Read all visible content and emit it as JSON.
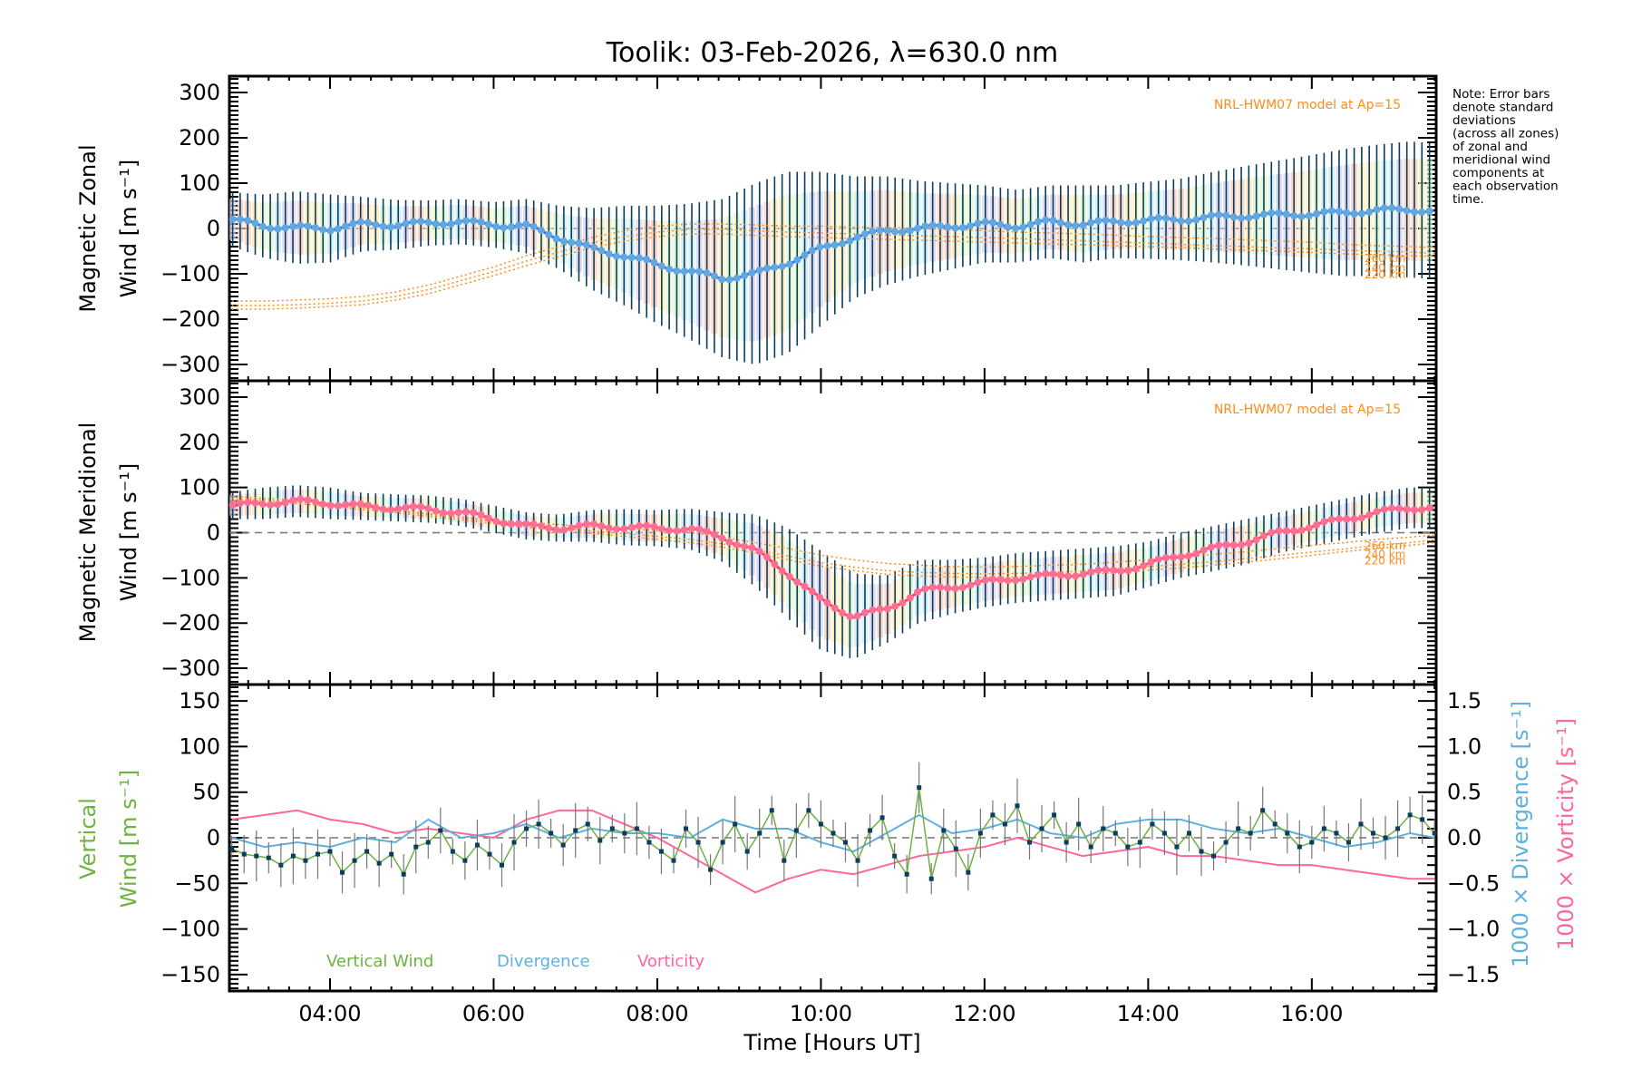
{
  "chart_data": [
    {
      "type": "line",
      "panel": "zonal",
      "title": "Toolik: 03-Feb-2026, λ=630.0 nm",
      "ylabel_line1": "Magnetic Zonal",
      "ylabel_line2": "Wind [m s⁻¹]",
      "ylim": [
        -336,
        336
      ],
      "yticks": [
        300,
        200,
        100,
        0,
        -100,
        -200,
        -300
      ],
      "model_label": "NRL-HWM07 model at Ap=15",
      "model_altitudes": [
        "260 km",
        "240 km",
        "220 km"
      ],
      "x": [
        2.8,
        3.2,
        3.6,
        4.0,
        4.4,
        4.8,
        5.2,
        5.6,
        6.0,
        6.4,
        6.8,
        7.2,
        7.6,
        8.0,
        8.4,
        8.8,
        9.2,
        9.6,
        10.0,
        10.4,
        10.8,
        11.2,
        11.6,
        12.0,
        12.4,
        12.8,
        13.2,
        13.6,
        14.0,
        14.4,
        14.8,
        15.2,
        15.6,
        16.0,
        16.4,
        16.8,
        17.2,
        17.5
      ],
      "series": [
        {
          "name": "Mean zonal wind",
          "color": "#3b5bff",
          "values": [
            20,
            5,
            2,
            0,
            10,
            8,
            12,
            15,
            8,
            5,
            -20,
            -45,
            -60,
            -80,
            -95,
            -110,
            -100,
            -75,
            -45,
            -20,
            -5,
            0,
            5,
            10,
            5,
            15,
            10,
            15,
            18,
            20,
            25,
            28,
            30,
            32,
            35,
            40,
            42,
            38
          ]
        },
        {
          "name": "Error bar half-width",
          "color": "#0b3d5c",
          "values": [
            60,
            70,
            80,
            75,
            60,
            55,
            50,
            50,
            50,
            60,
            70,
            90,
            110,
            130,
            150,
            175,
            200,
            200,
            170,
            135,
            120,
            105,
            95,
            85,
            80,
            80,
            85,
            80,
            85,
            90,
            100,
            110,
            120,
            130,
            140,
            145,
            150,
            150
          ]
        },
        {
          "name": "HWM07 260 km",
          "color": "#ff8c1a",
          "values": [
            -160,
            -160,
            -158,
            -155,
            -150,
            -140,
            -125,
            -105,
            -85,
            -60,
            -40,
            -20,
            -5,
            5,
            10,
            10,
            8,
            5,
            5,
            3,
            2,
            0,
            -2,
            -5,
            -8,
            -10,
            -12,
            -15,
            -18,
            -20,
            -22,
            -25,
            -28,
            -30,
            -35,
            -38,
            -40,
            -42
          ]
        },
        {
          "name": "HWM07 240 km",
          "color": "#ff8c1a",
          "values": [
            -170,
            -170,
            -168,
            -165,
            -160,
            -150,
            -135,
            -115,
            -95,
            -72,
            -52,
            -32,
            -18,
            -8,
            -2,
            -2,
            -5,
            -8,
            -10,
            -12,
            -14,
            -16,
            -18,
            -20,
            -22,
            -25,
            -27,
            -30,
            -32,
            -35,
            -38,
            -40,
            -43,
            -45,
            -48,
            -50,
            -52,
            -55
          ]
        },
        {
          "name": "HWM07 220 km",
          "color": "#ff8c1a",
          "values": [
            -178,
            -178,
            -176,
            -172,
            -168,
            -158,
            -144,
            -124,
            -104,
            -82,
            -62,
            -42,
            -28,
            -18,
            -12,
            -12,
            -15,
            -18,
            -20,
            -22,
            -24,
            -26,
            -28,
            -30,
            -32,
            -34,
            -36,
            -38,
            -40,
            -42,
            -45,
            -48,
            -50,
            -53,
            -56,
            -58,
            -60,
            -62
          ]
        }
      ]
    },
    {
      "type": "line",
      "panel": "meridional",
      "ylabel_line1": "Magnetic Meridional",
      "ylabel_line2": "Wind [m s⁻¹]",
      "ylim": [
        -336,
        336
      ],
      "yticks": [
        300,
        200,
        100,
        0,
        -100,
        -200,
        -300
      ],
      "model_label": "NRL-HWM07 model at Ap=15",
      "model_altitudes": [
        "260 km",
        "240 km",
        "220 km"
      ],
      "x": [
        2.8,
        3.2,
        3.6,
        4.0,
        4.4,
        4.8,
        5.2,
        5.6,
        6.0,
        6.4,
        6.8,
        7.2,
        7.6,
        8.0,
        8.4,
        8.8,
        9.2,
        9.6,
        10.0,
        10.4,
        10.8,
        11.2,
        11.6,
        12.0,
        12.4,
        12.8,
        13.2,
        13.6,
        14.0,
        14.4,
        14.8,
        15.2,
        15.6,
        16.0,
        16.4,
        16.8,
        17.2,
        17.5
      ],
      "series": [
        {
          "name": "Mean meridional wind",
          "color": "#ff4f7b",
          "values": [
            60,
            65,
            70,
            65,
            58,
            55,
            52,
            45,
            30,
            15,
            10,
            15,
            12,
            10,
            8,
            -10,
            -40,
            -90,
            -150,
            -185,
            -170,
            -130,
            -120,
            -110,
            -100,
            -95,
            -90,
            -85,
            -70,
            -50,
            -35,
            -20,
            0,
            15,
            30,
            45,
            55,
            55
          ]
        },
        {
          "name": "Error bar half-width",
          "color": "#0b3d5c",
          "values": [
            30,
            35,
            35,
            35,
            30,
            30,
            30,
            30,
            30,
            30,
            30,
            35,
            40,
            40,
            45,
            55,
            80,
            100,
            110,
            95,
            75,
            70,
            60,
            55,
            55,
            55,
            55,
            55,
            50,
            50,
            50,
            50,
            45,
            45,
            45,
            45,
            45,
            45
          ]
        },
        {
          "name": "HWM07 260 km",
          "color": "#ff8c1a",
          "values": [
            80,
            76,
            72,
            65,
            58,
            50,
            42,
            35,
            28,
            22,
            18,
            12,
            8,
            5,
            0,
            -10,
            -22,
            -35,
            -50,
            -60,
            -68,
            -72,
            -75,
            -76,
            -75,
            -72,
            -70,
            -65,
            -60,
            -55,
            -48,
            -42,
            -35,
            -28,
            -22,
            -15,
            -10,
            -5
          ]
        },
        {
          "name": "HWM07 240 km",
          "color": "#ff8c1a",
          "values": [
            75,
            72,
            68,
            62,
            55,
            48,
            40,
            32,
            24,
            16,
            10,
            4,
            -2,
            -8,
            -15,
            -25,
            -38,
            -52,
            -66,
            -76,
            -84,
            -88,
            -90,
            -91,
            -90,
            -88,
            -85,
            -80,
            -75,
            -70,
            -64,
            -58,
            -50,
            -43,
            -36,
            -28,
            -22,
            -16
          ]
        },
        {
          "name": "HWM07 220 km",
          "color": "#ff8c1a",
          "values": [
            70,
            68,
            64,
            58,
            51,
            44,
            36,
            28,
            20,
            12,
            5,
            -2,
            -8,
            -15,
            -22,
            -32,
            -45,
            -60,
            -74,
            -84,
            -92,
            -96,
            -98,
            -99,
            -98,
            -96,
            -93,
            -88,
            -83,
            -78,
            -72,
            -65,
            -58,
            -50,
            -42,
            -35,
            -28,
            -22
          ]
        }
      ]
    },
    {
      "type": "line",
      "panel": "vertical",
      "ylabel_line1": "Vertical",
      "ylabel_line2": "Wind [m s⁻¹]",
      "ylim": [
        -168,
        168
      ],
      "yticks": [
        150,
        100,
        50,
        0,
        -50,
        -100,
        -150
      ],
      "y2label_divergence": "1000 × Divergence [s⁻¹]",
      "y2label_vorticity": "1000 × Vorticity [s⁻¹]",
      "y2lim": [
        -1.68,
        1.68
      ],
      "y2ticks": [
        "1.5",
        "1.0",
        "0.5",
        "0.0",
        "−0.5",
        "−1.0",
        "−1.5"
      ],
      "xlabel": "Time [Hours UT]",
      "xticks": [
        "04:00",
        "06:00",
        "08:00",
        "10:00",
        "12:00",
        "14:00",
        "16:00"
      ],
      "xlim_hours": [
        2.77,
        17.52
      ],
      "legend": [
        {
          "label": "Vertical Wind",
          "color": "#6db33f"
        },
        {
          "label": "Divergence",
          "color": "#5fb0dc"
        },
        {
          "label": "Vorticity",
          "color": "#ff6699"
        }
      ],
      "vertical_wind": {
        "x": [
          2.8,
          2.95,
          3.1,
          3.25,
          3.4,
          3.55,
          3.7,
          3.85,
          4.0,
          4.15,
          4.3,
          4.45,
          4.6,
          4.75,
          4.9,
          5.05,
          5.2,
          5.35,
          5.5,
          5.65,
          5.8,
          5.95,
          6.1,
          6.25,
          6.4,
          6.55,
          6.7,
          6.85,
          7.0,
          7.15,
          7.3,
          7.45,
          7.6,
          7.75,
          7.9,
          8.05,
          8.2,
          8.35,
          8.5,
          8.65,
          8.8,
          8.95,
          9.1,
          9.25,
          9.4,
          9.55,
          9.7,
          9.85,
          10.0,
          10.15,
          10.3,
          10.45,
          10.6,
          10.75,
          10.9,
          11.05,
          11.2,
          11.35,
          11.5,
          11.65,
          11.8,
          11.95,
          12.1,
          12.25,
          12.4,
          12.55,
          12.7,
          12.85,
          13.0,
          13.15,
          13.3,
          13.45,
          13.6,
          13.75,
          13.9,
          14.05,
          14.2,
          14.35,
          14.5,
          14.65,
          14.8,
          14.95,
          15.1,
          15.25,
          15.4,
          15.55,
          15.7,
          15.85,
          16.0,
          16.15,
          16.3,
          16.45,
          16.6,
          16.75,
          16.9,
          17.05,
          17.2,
          17.35,
          17.5
        ],
        "values": [
          -12,
          -18,
          -20,
          -22,
          -30,
          -20,
          -25,
          -18,
          -15,
          -38,
          -25,
          -15,
          -28,
          -18,
          -40,
          -10,
          -5,
          8,
          -15,
          -25,
          -8,
          -18,
          -30,
          -5,
          10,
          15,
          5,
          -8,
          8,
          15,
          -3,
          10,
          5,
          10,
          -5,
          -15,
          -25,
          10,
          -5,
          -35,
          -5,
          15,
          -15,
          5,
          30,
          -25,
          8,
          30,
          15,
          5,
          -5,
          -25,
          8,
          22,
          -20,
          -40,
          55,
          -45,
          8,
          -12,
          -38,
          5,
          25,
          15,
          35,
          -5,
          10,
          25,
          -5,
          15,
          -10,
          10,
          5,
          -10,
          -5,
          15,
          5,
          -10,
          5,
          -15,
          -20,
          -5,
          10,
          5,
          30,
          15,
          5,
          -10,
          -5,
          10,
          5,
          -5,
          15,
          5,
          0,
          10,
          25,
          20,
          5
        ]
      },
      "divergence_x1000": {
        "x": [
          2.8,
          3.2,
          3.6,
          4.0,
          4.4,
          4.8,
          5.2,
          5.6,
          6.0,
          6.4,
          6.8,
          7.2,
          7.6,
          8.0,
          8.4,
          8.8,
          9.2,
          9.6,
          10.0,
          10.4,
          10.8,
          11.2,
          11.6,
          12.0,
          12.4,
          12.8,
          13.2,
          13.6,
          14.0,
          14.4,
          14.8,
          15.2,
          15.6,
          16.0,
          16.4,
          16.8,
          17.2,
          17.5
        ],
        "values": [
          0.0,
          -0.1,
          -0.05,
          -0.1,
          0.0,
          -0.05,
          0.2,
          0.0,
          0.05,
          0.15,
          0.0,
          0.1,
          0.05,
          0.05,
          0.0,
          0.2,
          0.1,
          0.1,
          -0.05,
          -0.15,
          0.05,
          0.25,
          0.05,
          0.1,
          0.2,
          0.05,
          0.0,
          0.15,
          0.2,
          0.2,
          0.1,
          0.05,
          0.1,
          0.0,
          -0.1,
          -0.05,
          0.05,
          0.0
        ]
      },
      "vorticity_x1000": {
        "x": [
          2.8,
          3.2,
          3.6,
          4.0,
          4.4,
          4.8,
          5.2,
          5.6,
          6.0,
          6.4,
          6.8,
          7.2,
          7.6,
          8.0,
          8.4,
          8.8,
          9.2,
          9.6,
          10.0,
          10.4,
          10.8,
          11.2,
          11.6,
          12.0,
          12.4,
          12.8,
          13.2,
          13.6,
          14.0,
          14.4,
          14.8,
          15.2,
          15.6,
          16.0,
          16.4,
          16.8,
          17.2,
          17.5
        ],
        "values": [
          0.2,
          0.25,
          0.3,
          0.2,
          0.15,
          0.05,
          0.1,
          0.05,
          0.0,
          0.2,
          0.3,
          0.3,
          0.15,
          0.0,
          -0.2,
          -0.4,
          -0.6,
          -0.45,
          -0.35,
          -0.4,
          -0.3,
          -0.2,
          -0.15,
          -0.1,
          0.0,
          -0.1,
          -0.2,
          -0.15,
          -0.1,
          -0.2,
          -0.2,
          -0.25,
          -0.3,
          -0.3,
          -0.35,
          -0.4,
          -0.45,
          -0.45
        ]
      }
    }
  ],
  "note_lines": [
    "Note: Error bars",
    "denote standard",
    "deviations",
    "(across all zones)",
    "of zonal and",
    "meridional wind",
    "components at",
    "each observation",
    "time."
  ]
}
